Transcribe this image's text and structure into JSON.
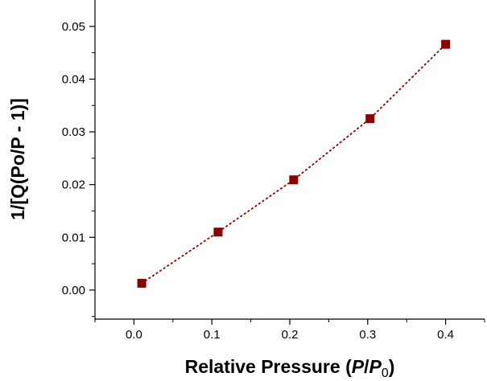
{
  "chart_data": {
    "type": "scatter",
    "title": "",
    "xlabel": {
      "prefix": "Relative Pressure (",
      "var1": "P",
      "slash": "/",
      "var2": "P",
      "sub": "0",
      "suffix": ")"
    },
    "ylabel": "1/[Q(Po/P - 1)]",
    "xlim": [
      -0.05,
      0.45
    ],
    "ylim": [
      -0.0055,
      0.055
    ],
    "x_ticks": [
      "0.0",
      "0.1",
      "0.2",
      "0.3",
      "0.4"
    ],
    "y_ticks": [
      "0.00",
      "0.01",
      "0.02",
      "0.03",
      "0.04",
      "0.05"
    ],
    "series": [
      {
        "points": [
          {
            "x": 0.01,
            "y": 0.0013
          },
          {
            "x": 0.108,
            "y": 0.011
          },
          {
            "x": 0.205,
            "y": 0.0209
          },
          {
            "x": 0.303,
            "y": 0.0325
          },
          {
            "x": 0.4,
            "y": 0.0466
          }
        ],
        "color": "#8b0000",
        "marker": "square",
        "line_style": "dotted"
      }
    ],
    "grid": false,
    "legend": "none"
  }
}
